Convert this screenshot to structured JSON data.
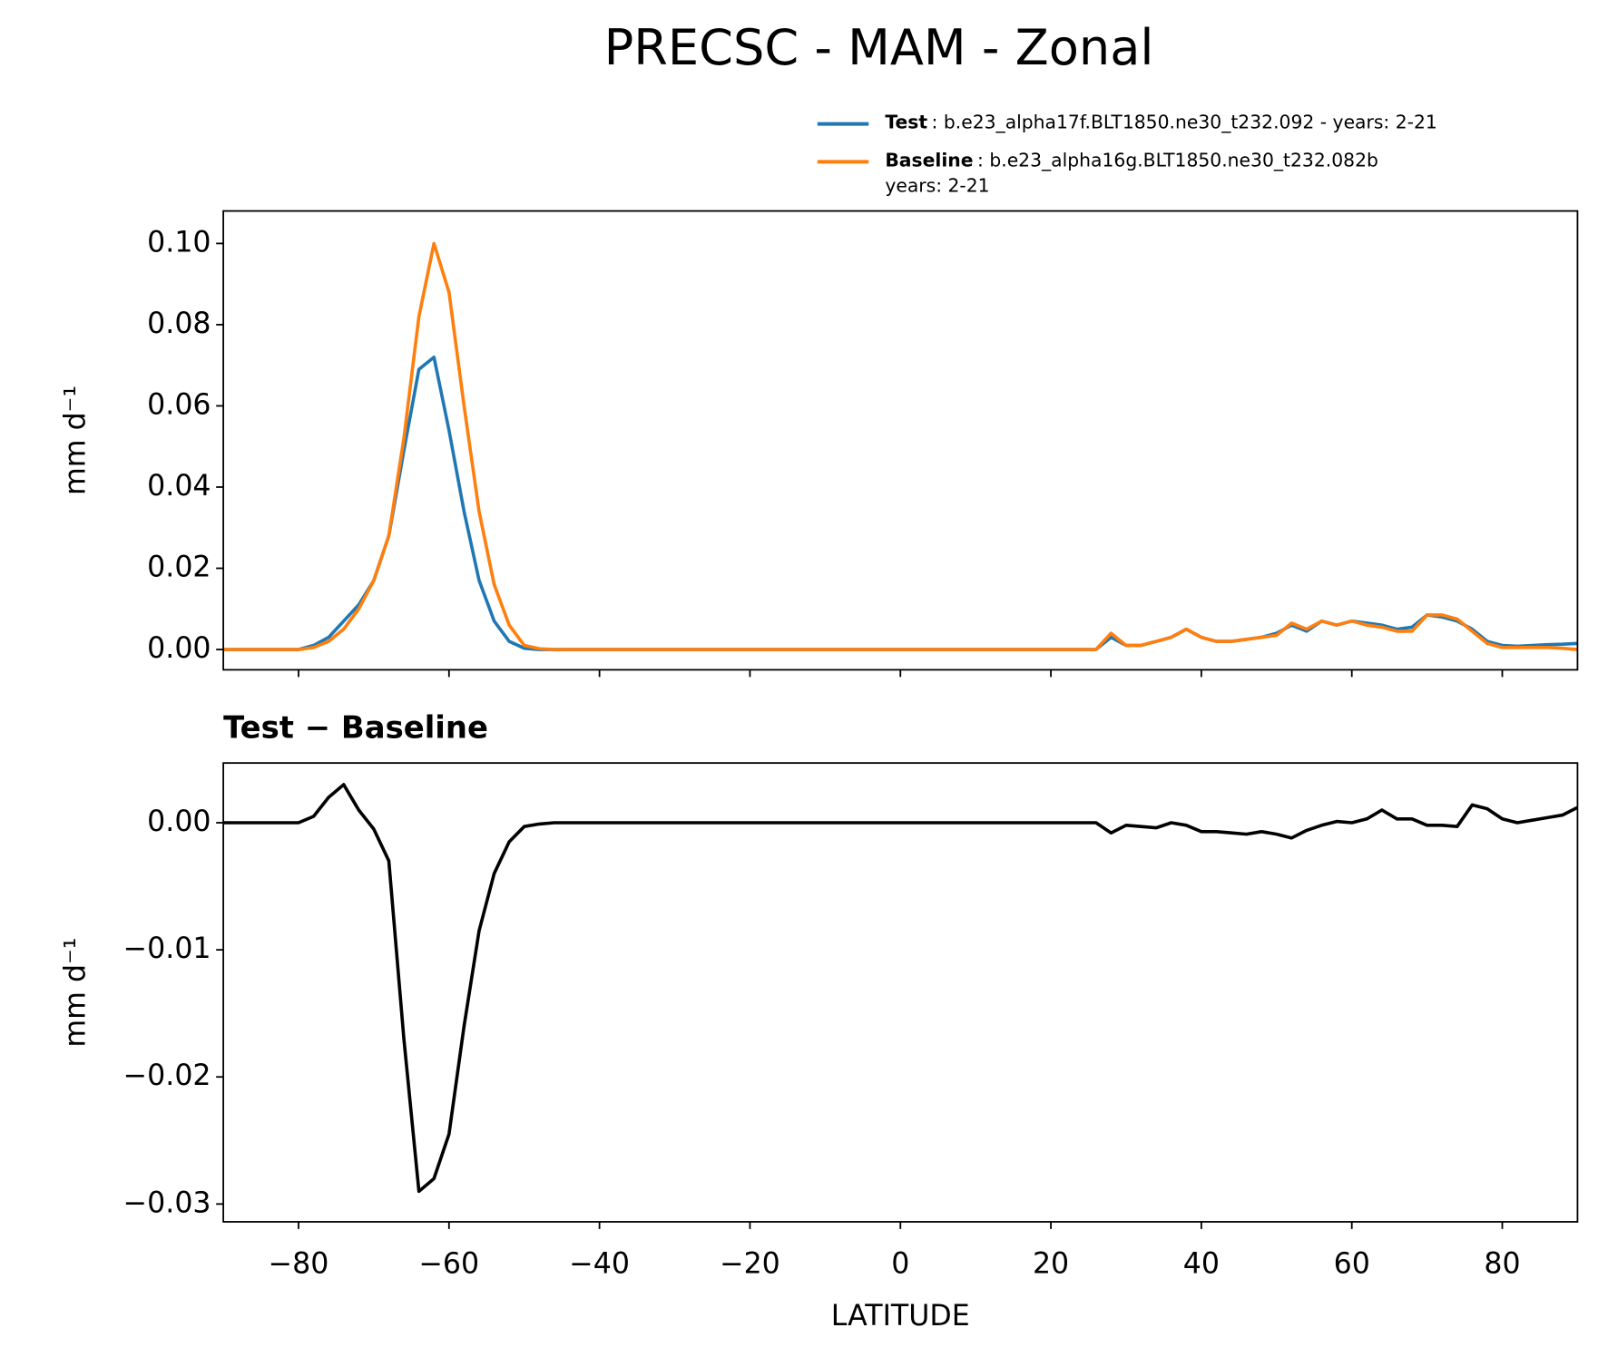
{
  "title": "PRECSC - MAM - Zonal",
  "chart_data": [
    {
      "type": "line",
      "ylabel": "mm d⁻¹",
      "legend": "upper right outside",
      "x": [
        -90,
        -88,
        -86,
        -84,
        -82,
        -80,
        -78,
        -76,
        -74,
        -72,
        -70,
        -68,
        -66,
        -64,
        -62,
        -60,
        -58,
        -56,
        -54,
        -52,
        -50,
        -48,
        -46,
        -44,
        -42,
        -40,
        -38,
        -36,
        -34,
        -32,
        -30,
        -28,
        -26,
        -24,
        -22,
        -20,
        -18,
        -16,
        -14,
        -12,
        -10,
        -8,
        -6,
        -4,
        -2,
        0,
        2,
        4,
        6,
        8,
        10,
        12,
        14,
        16,
        18,
        20,
        22,
        24,
        26,
        28,
        30,
        32,
        34,
        36,
        38,
        40,
        42,
        44,
        46,
        48,
        50,
        52,
        54,
        56,
        58,
        60,
        62,
        64,
        66,
        68,
        70,
        72,
        74,
        76,
        78,
        80,
        82,
        84,
        86,
        88,
        90
      ],
      "series": [
        {
          "name": "Test",
          "detail": [
            ": b.e23_alpha17f.BLT1850.ne30_t232.092 - years: 2-21"
          ],
          "color": "#1f77b4",
          "values": [
            0,
            0,
            0,
            0,
            0,
            0,
            0.001,
            0.003,
            0.007,
            0.011,
            0.017,
            0.028,
            0.049,
            0.069,
            0.072,
            0.054,
            0.034,
            0.017,
            0.007,
            0.002,
            0.0003,
            0,
            0,
            0,
            0,
            0,
            0,
            0,
            0,
            0,
            0,
            0,
            0,
            0,
            0,
            0,
            0,
            0,
            0,
            0,
            0,
            0,
            0,
            0,
            0,
            0,
            0,
            0,
            0,
            0,
            0,
            0,
            0,
            0,
            0,
            0,
            0,
            0,
            0,
            0.003,
            0.001,
            0.001,
            0.002,
            0.003,
            0.005,
            0.003,
            0.002,
            0.002,
            0.0025,
            0.003,
            0.004,
            0.006,
            0.0045,
            0.007,
            0.006,
            0.007,
            0.0065,
            0.006,
            0.005,
            0.0055,
            0.0085,
            0.008,
            0.007,
            0.005,
            0.002,
            0.001,
            0.0008,
            0.001,
            0.0012,
            0.0013,
            0.0015
          ]
        },
        {
          "name": "Baseline",
          "detail": [
            ": b.e23_alpha16g.BLT1850.ne30_t232.082b",
            "years: 2-21"
          ],
          "color": "#ff7f0e",
          "values": [
            0,
            0,
            0,
            0,
            0,
            0,
            0.0005,
            0.002,
            0.005,
            0.01,
            0.017,
            0.028,
            0.052,
            0.082,
            0.1,
            0.088,
            0.06,
            0.034,
            0.016,
            0.006,
            0.001,
            0.0002,
            0,
            0,
            0,
            0,
            0,
            0,
            0,
            0,
            0,
            0,
            0,
            0,
            0,
            0,
            0,
            0,
            0,
            0,
            0,
            0,
            0,
            0,
            0,
            0,
            0,
            0,
            0,
            0,
            0,
            0,
            0,
            0,
            0,
            0,
            0,
            0,
            0,
            0.004,
            0.001,
            0.001,
            0.002,
            0.003,
            0.005,
            0.003,
            0.002,
            0.002,
            0.0025,
            0.003,
            0.0035,
            0.0065,
            0.005,
            0.007,
            0.006,
            0.007,
            0.006,
            0.0055,
            0.0045,
            0.0045,
            0.0085,
            0.0085,
            0.0075,
            0.0045,
            0.0015,
            0.0005,
            0.0005,
            0.0005,
            0.0005,
            0.0003,
            0
          ]
        }
      ],
      "xlim": [
        -90,
        90
      ],
      "ylim": [
        -0.005,
        0.108
      ],
      "xticks": [
        -80,
        -60,
        -40,
        -20,
        0,
        20,
        40,
        60,
        80
      ],
      "yticks": [
        {
          "value": 0,
          "label": "0.00"
        },
        {
          "value": 0.02,
          "label": "0.02"
        },
        {
          "value": 0.04,
          "label": "0.04"
        },
        {
          "value": 0.06,
          "label": "0.06"
        },
        {
          "value": 0.08,
          "label": "0.08"
        },
        {
          "value": 0.1,
          "label": "0.10"
        }
      ]
    },
    {
      "type": "line",
      "title": "Test − Baseline",
      "ylabel": "mm d⁻¹",
      "xlabel": "LATITUDE",
      "x": [
        -90,
        -88,
        -86,
        -84,
        -82,
        -80,
        -78,
        -76,
        -74,
        -72,
        -70,
        -68,
        -66,
        -64,
        -62,
        -60,
        -58,
        -56,
        -54,
        -52,
        -50,
        -48,
        -46,
        -44,
        -42,
        -40,
        -38,
        -36,
        -34,
        -32,
        -30,
        -28,
        -26,
        -24,
        -22,
        -20,
        -18,
        -16,
        -14,
        -12,
        -10,
        -8,
        -6,
        -4,
        -2,
        0,
        2,
        4,
        6,
        8,
        10,
        12,
        14,
        16,
        18,
        20,
        22,
        24,
        26,
        28,
        30,
        32,
        34,
        36,
        38,
        40,
        42,
        44,
        46,
        48,
        50,
        52,
        54,
        56,
        58,
        60,
        62,
        64,
        66,
        68,
        70,
        72,
        74,
        76,
        78,
        80,
        82,
        84,
        86,
        88,
        90
      ],
      "series": [
        {
          "color": "#000000",
          "values": [
            0,
            0,
            0,
            0,
            0,
            0,
            0.0005,
            0.002,
            0.003,
            0.001,
            -0.0005,
            -0.003,
            -0.017,
            -0.029,
            -0.028,
            -0.0245,
            -0.016,
            -0.0085,
            -0.004,
            -0.0015,
            -0.0003,
            -0.0001,
            0,
            0,
            0,
            0,
            0,
            0,
            0,
            0,
            0,
            0,
            0,
            0,
            0,
            0,
            0,
            0,
            0,
            0,
            0,
            0,
            0,
            0,
            0,
            0,
            0,
            0,
            0,
            0,
            0,
            0,
            0,
            0,
            0,
            0,
            0,
            0,
            0,
            -0.0008,
            -0.0002,
            -0.0003,
            -0.0004,
            0,
            -0.0002,
            -0.0007,
            -0.0007,
            -0.0008,
            -0.0009,
            -0.0007,
            -0.0009,
            -0.0012,
            -0.0006,
            -0.0002,
            0.0001,
            0,
            0.0003,
            0.001,
            0.0003,
            0.0003,
            -0.0002,
            -0.0002,
            -0.0003,
            0.0014,
            0.0011,
            0.0003,
            0,
            0.0002,
            0.0004,
            0.0006,
            0.0012
          ]
        }
      ],
      "xlim": [
        -90,
        90
      ],
      "ylim": [
        -0.0314,
        0.0047
      ],
      "xticks": [
        {
          "value": -80,
          "label": "−80"
        },
        {
          "value": -60,
          "label": "−60"
        },
        {
          "value": -40,
          "label": "−40"
        },
        {
          "value": -20,
          "label": "−20"
        },
        0,
        20,
        40,
        60,
        80
      ],
      "yticks": [
        {
          "value": -0.03,
          "label": "−0.03"
        },
        {
          "value": -0.02,
          "label": "−0.02"
        },
        {
          "value": -0.01,
          "label": "−0.01"
        },
        {
          "value": 0,
          "label": "0.00"
        }
      ]
    }
  ]
}
